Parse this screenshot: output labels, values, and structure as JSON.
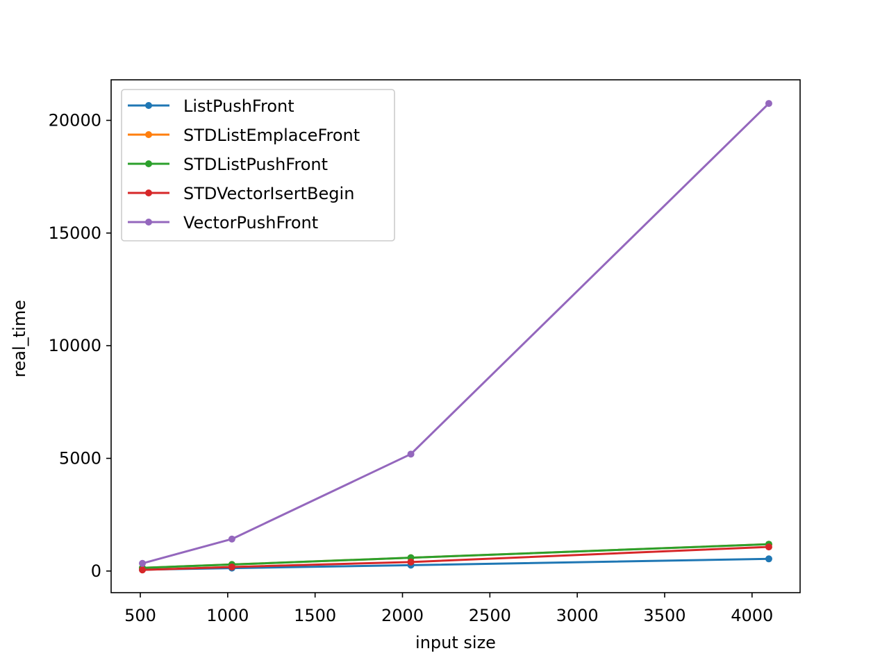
{
  "chart_data": {
    "type": "line",
    "title": "",
    "xlabel": "input size",
    "ylabel": "real_time",
    "x": [
      512,
      1024,
      2048,
      4096
    ],
    "xlim": [
      333,
      4275
    ],
    "ylim": [
      -960,
      21800
    ],
    "xticks": [
      500,
      1000,
      1500,
      2000,
      2500,
      3000,
      3500,
      4000
    ],
    "yticks": [
      0,
      5000,
      10000,
      15000,
      20000
    ],
    "grid": false,
    "legend_position": "top-left",
    "series": [
      {
        "name": "ListPushFront",
        "color": "#1f77b4",
        "values": [
          60,
          130,
          260,
          540
        ]
      },
      {
        "name": "STDListEmplaceFront",
        "color": "#ff7f0e",
        "values": [
          140,
          290,
          590,
          1190
        ]
      },
      {
        "name": "STDListPushFront",
        "color": "#2ca02c",
        "values": [
          140,
          290,
          590,
          1190
        ]
      },
      {
        "name": "STDVectorIsertBegin",
        "color": "#d62728",
        "values": [
          50,
          180,
          400,
          1070
        ]
      },
      {
        "name": "VectorPushFront",
        "color": "#9467bd",
        "values": [
          340,
          1420,
          5190,
          20750
        ]
      }
    ]
  }
}
